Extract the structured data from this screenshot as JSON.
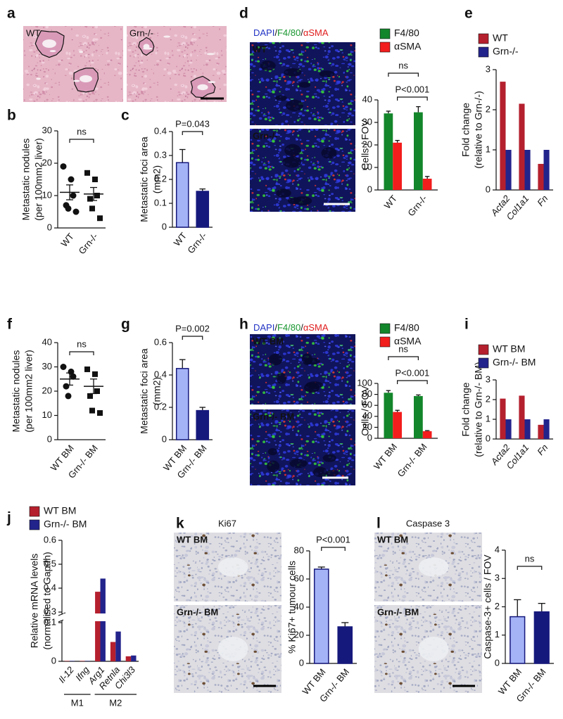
{
  "image_panels": [
    {
      "panel": "a",
      "style": "he",
      "images": [
        "WT",
        "Grn-/-"
      ]
    },
    {
      "panel": "d",
      "style": "if",
      "stain": [
        {
          "text": "DAPI",
          "color": "#2233c4"
        },
        {
          "text": "/",
          "color": "#111111"
        },
        {
          "text": "F4/80",
          "color": "#17962f"
        },
        {
          "text": "/",
          "color": "#111111"
        },
        {
          "text": "αSMA",
          "color": "#e01d1d"
        }
      ],
      "images": [
        "WT",
        "Grn-/-"
      ]
    },
    {
      "panel": "h",
      "style": "if",
      "stain": [
        {
          "text": "DAPI",
          "color": "#2233c4"
        },
        {
          "text": "/",
          "color": "#111111"
        },
        {
          "text": "F4/80",
          "color": "#17962f"
        },
        {
          "text": "/",
          "color": "#111111"
        },
        {
          "text": "αSMA",
          "color": "#e01d1d"
        }
      ],
      "images": [
        "WT BM",
        "Grn-/- BM"
      ]
    },
    {
      "panel": "k",
      "style": "ihc",
      "title": "Ki67",
      "images": [
        "WT BM",
        "Grn-/- BM"
      ]
    },
    {
      "panel": "l",
      "style": "ihc",
      "title": "Caspase 3",
      "images": [
        "WT BM",
        "Grn-/- BM"
      ]
    }
  ],
  "chart_data": [
    {
      "panel": "b",
      "type": "dot",
      "ylabel": [
        "Metastatic nodules",
        "(per 100mm2 liver)"
      ],
      "categories": [
        "WT",
        "Grn-/-"
      ],
      "points": [
        [
          19,
          15,
          10,
          7,
          6,
          5
        ],
        [
          17,
          15,
          10,
          9,
          6,
          3
        ]
      ],
      "markers": [
        "circle",
        "square"
      ],
      "means": [
        11,
        10.5
      ],
      "errors": [
        2.3,
        2
      ],
      "ylim": [
        0,
        30
      ],
      "yticks": [
        0,
        10,
        20,
        30
      ],
      "annotations": [
        "ns"
      ]
    },
    {
      "panel": "c",
      "type": "bar",
      "ylabel": [
        "Metastatic foci area",
        "(mm2)"
      ],
      "categories": [
        "WT",
        "Grn-/-"
      ],
      "values": [
        0.27,
        0.15
      ],
      "errors": [
        0.055,
        0.01
      ],
      "colors": [
        "#a4b3f6",
        "#16197c"
      ],
      "ylim": [
        0,
        0.4
      ],
      "yticks": [
        0,
        0.1,
        0.2,
        0.3,
        0.4
      ],
      "annotations": [
        "P=0.043"
      ]
    },
    {
      "type": "grouped_bar",
      "ylabel": [
        "Cells / FOV"
      ],
      "categories": [
        "WT",
        "Grn-/-"
      ],
      "series": [
        {
          "name": "F4/80",
          "color": "#13862b",
          "values": [
            34,
            34.5
          ],
          "errors": [
            1,
            2.5
          ]
        },
        {
          "name": "αSMA",
          "color": "#f21d1d",
          "values": [
            21,
            5
          ],
          "errors": [
            1,
            1
          ]
        }
      ],
      "ylim": [
        0,
        40
      ],
      "yticks": [
        0,
        10,
        20,
        30,
        40
      ],
      "annotations": [
        "ns",
        "P<0.001"
      ]
    },
    {
      "panel": "e",
      "type": "grouped_bar",
      "ylabel": [
        "Fold change",
        "(relative to Grn-/-)"
      ],
      "categories": [
        "Acta2",
        "Col1a1",
        "Fn"
      ],
      "category_style": "italic",
      "series": [
        {
          "name": "WT",
          "color": "#b5202e",
          "values": [
            2.7,
            2.15,
            0.65
          ]
        },
        {
          "name": "Grn-/-",
          "color": "#23238c",
          "values": [
            1,
            1,
            1
          ]
        }
      ],
      "ylim": [
        0,
        3
      ],
      "yticks": [
        0,
        1,
        2,
        3
      ]
    },
    {
      "panel": "f",
      "type": "dot",
      "ylabel": [
        "Metastatic nodules",
        "(per 100mm2 liver)"
      ],
      "categories": [
        "WT BM",
        "Grn-/- BM"
      ],
      "points": [
        [
          30,
          28,
          26,
          22,
          18
        ],
        [
          29,
          27,
          20,
          18,
          12,
          11
        ]
      ],
      "markers": [
        "circle",
        "square"
      ],
      "means": [
        25,
        22
      ],
      "errors": [
        2.5,
        3
      ],
      "ylim": [
        0,
        40
      ],
      "yticks": [
        0,
        10,
        20,
        30,
        40
      ],
      "annotations": [
        "ns"
      ]
    },
    {
      "panel": "g",
      "type": "bar",
      "ylabel": [
        "Metastatic foci area",
        "(mm2)"
      ],
      "categories": [
        "WT BM",
        "Grn-/- BM"
      ],
      "values": [
        0.44,
        0.18
      ],
      "errors": [
        0.055,
        0.02
      ],
      "colors": [
        "#a4b3f6",
        "#16197c"
      ],
      "ylim": [
        0,
        0.6
      ],
      "yticks": [
        0,
        0.2,
        0.4,
        0.6
      ],
      "annotations": [
        "P=0.002"
      ]
    },
    {
      "type": "grouped_bar",
      "ylabel": [
        "Cells / FOV"
      ],
      "categories": [
        "WT BM",
        "Grn-/- BM"
      ],
      "series": [
        {
          "name": "F4/80",
          "color": "#13862b",
          "values": [
            83,
            77
          ],
          "errors": [
            4,
            2
          ]
        },
        {
          "name": "αSMA",
          "color": "#f21d1d",
          "values": [
            48,
            13
          ],
          "errors": [
            3,
            1
          ]
        }
      ],
      "ylim": [
        0,
        100
      ],
      "yticks": [
        0,
        20,
        40,
        60,
        80,
        100
      ],
      "annotations": [
        "ns",
        "P<0.001"
      ]
    },
    {
      "panel": "i",
      "type": "grouped_bar",
      "ylabel": [
        "Fold change",
        "(relative to Grn-/- BM)"
      ],
      "categories": [
        "Acta2",
        "Col1a1",
        "Fn"
      ],
      "category_style": "italic",
      "series": [
        {
          "name": "WT BM",
          "color": "#b5202e",
          "values": [
            2.05,
            2.2,
            0.72
          ]
        },
        {
          "name": "Grn-/- BM",
          "color": "#23238c",
          "values": [
            1,
            1,
            1
          ]
        }
      ],
      "ylim": [
        0,
        3
      ],
      "yticks": [
        0,
        1,
        2,
        3
      ]
    },
    {
      "panel": "j",
      "type": "grouped_bar",
      "ylabel": [
        "Relative mRNA levels",
        "(normalised to Gapdh)"
      ],
      "categories": [
        "Il-12",
        "Ifng",
        "Arg1",
        "Retnla",
        "Chi3l3"
      ],
      "category_style": "italic",
      "series": [
        {
          "name": "WT BM",
          "color": "#b5202e",
          "values": [
            0.001,
            0.001,
            0.385,
            0.05,
            0.013
          ]
        },
        {
          "name": "Grn-/- BM",
          "color": "#23238c",
          "values": [
            0.001,
            0.001,
            0.44,
            0.077,
            0.015
          ]
        }
      ],
      "ylim": [
        0,
        0.6
      ],
      "ybreak": [
        0.1,
        0.3
      ],
      "yticks": [
        0,
        0.1,
        0.3,
        0.4,
        0.5,
        0.6
      ],
      "groups": [
        "M1",
        "M2"
      ]
    },
    {
      "type": "bar",
      "ylabel": [
        "% Ki67+ tumour cells"
      ],
      "categories": [
        "WT BM",
        "Grn-/- BM"
      ],
      "values": [
        67,
        26
      ],
      "errors": [
        1.5,
        3
      ],
      "colors": [
        "#a4b3f6",
        "#16197c"
      ],
      "ylim": [
        0,
        80
      ],
      "yticks": [
        0,
        20,
        40,
        60,
        80
      ],
      "annotations": [
        "P<0.001"
      ]
    },
    {
      "type": "bar",
      "ylabel": [
        "Caspase-3+ cells / FOV"
      ],
      "categories": [
        "WT BM",
        "Grn-/- BM"
      ],
      "values": [
        1.65,
        1.82
      ],
      "errors": [
        0.6,
        0.3
      ],
      "colors": [
        "#a4b3f6",
        "#16197c"
      ],
      "ylim": [
        0,
        4
      ],
      "yticks": [
        0,
        1,
        2,
        3,
        4
      ],
      "annotations": [
        "ns"
      ]
    }
  ]
}
